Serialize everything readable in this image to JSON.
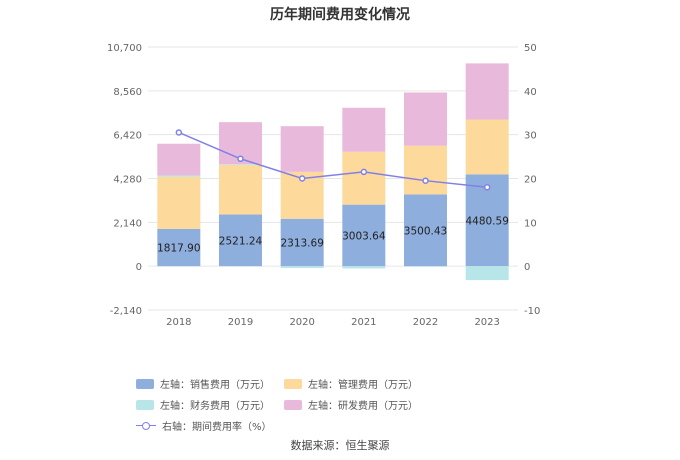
{
  "chart_data": {
    "type": "bar",
    "stacked": true,
    "title": "历年期间费用变化情况",
    "categories": [
      "2018",
      "2019",
      "2020",
      "2021",
      "2022",
      "2023"
    ],
    "left_axis": {
      "ylim": [
        -2140,
        10700
      ],
      "ticks": [
        "10,700",
        "8,560",
        "6,420",
        "4,280",
        "2,140",
        "0",
        "-2,140"
      ],
      "tick_values": [
        10700,
        8560,
        6420,
        4280,
        2140,
        0,
        -2140
      ]
    },
    "right_axis": {
      "ylim": [
        -10,
        50
      ],
      "ticks": [
        "50",
        "40",
        "30",
        "20",
        "10",
        "0",
        "-10"
      ],
      "tick_values": [
        50,
        40,
        30,
        20,
        10,
        0,
        -10
      ]
    },
    "series": [
      {
        "name": "左轴：销售费用（万元）",
        "axis": "left",
        "color": "#8eaedd",
        "values": [
          1817.9,
          2521.24,
          2313.69,
          3003.64,
          3500.43,
          4480.59
        ],
        "labels": [
          "1817.90",
          "2521.24",
          "2313.69",
          "3003.64",
          "3500.43",
          "4480.59"
        ]
      },
      {
        "name": "左轴：管理费用（万元）",
        "axis": "left",
        "color": "#fdd99b",
        "values": [
          2550,
          2420,
          2290,
          2580,
          2380,
          2680
        ]
      },
      {
        "name": "左轴：财务费用（万元）",
        "axis": "left",
        "color": "#b8e6e8",
        "values": [
          60,
          40,
          -90,
          -110,
          -30,
          -680
        ]
      },
      {
        "name": "左轴：研发费用（万元）",
        "axis": "left",
        "color": "#e9b9db",
        "values": [
          1550,
          2050,
          2230,
          2150,
          2600,
          2740
        ]
      },
      {
        "name": "右轴：期间费用率（%）",
        "axis": "right",
        "type": "line",
        "color": "#8080e8",
        "values": [
          30.5,
          24.5,
          20.0,
          21.5,
          19.5,
          18.0
        ]
      }
    ]
  },
  "source": "数据来源：恒生聚源"
}
